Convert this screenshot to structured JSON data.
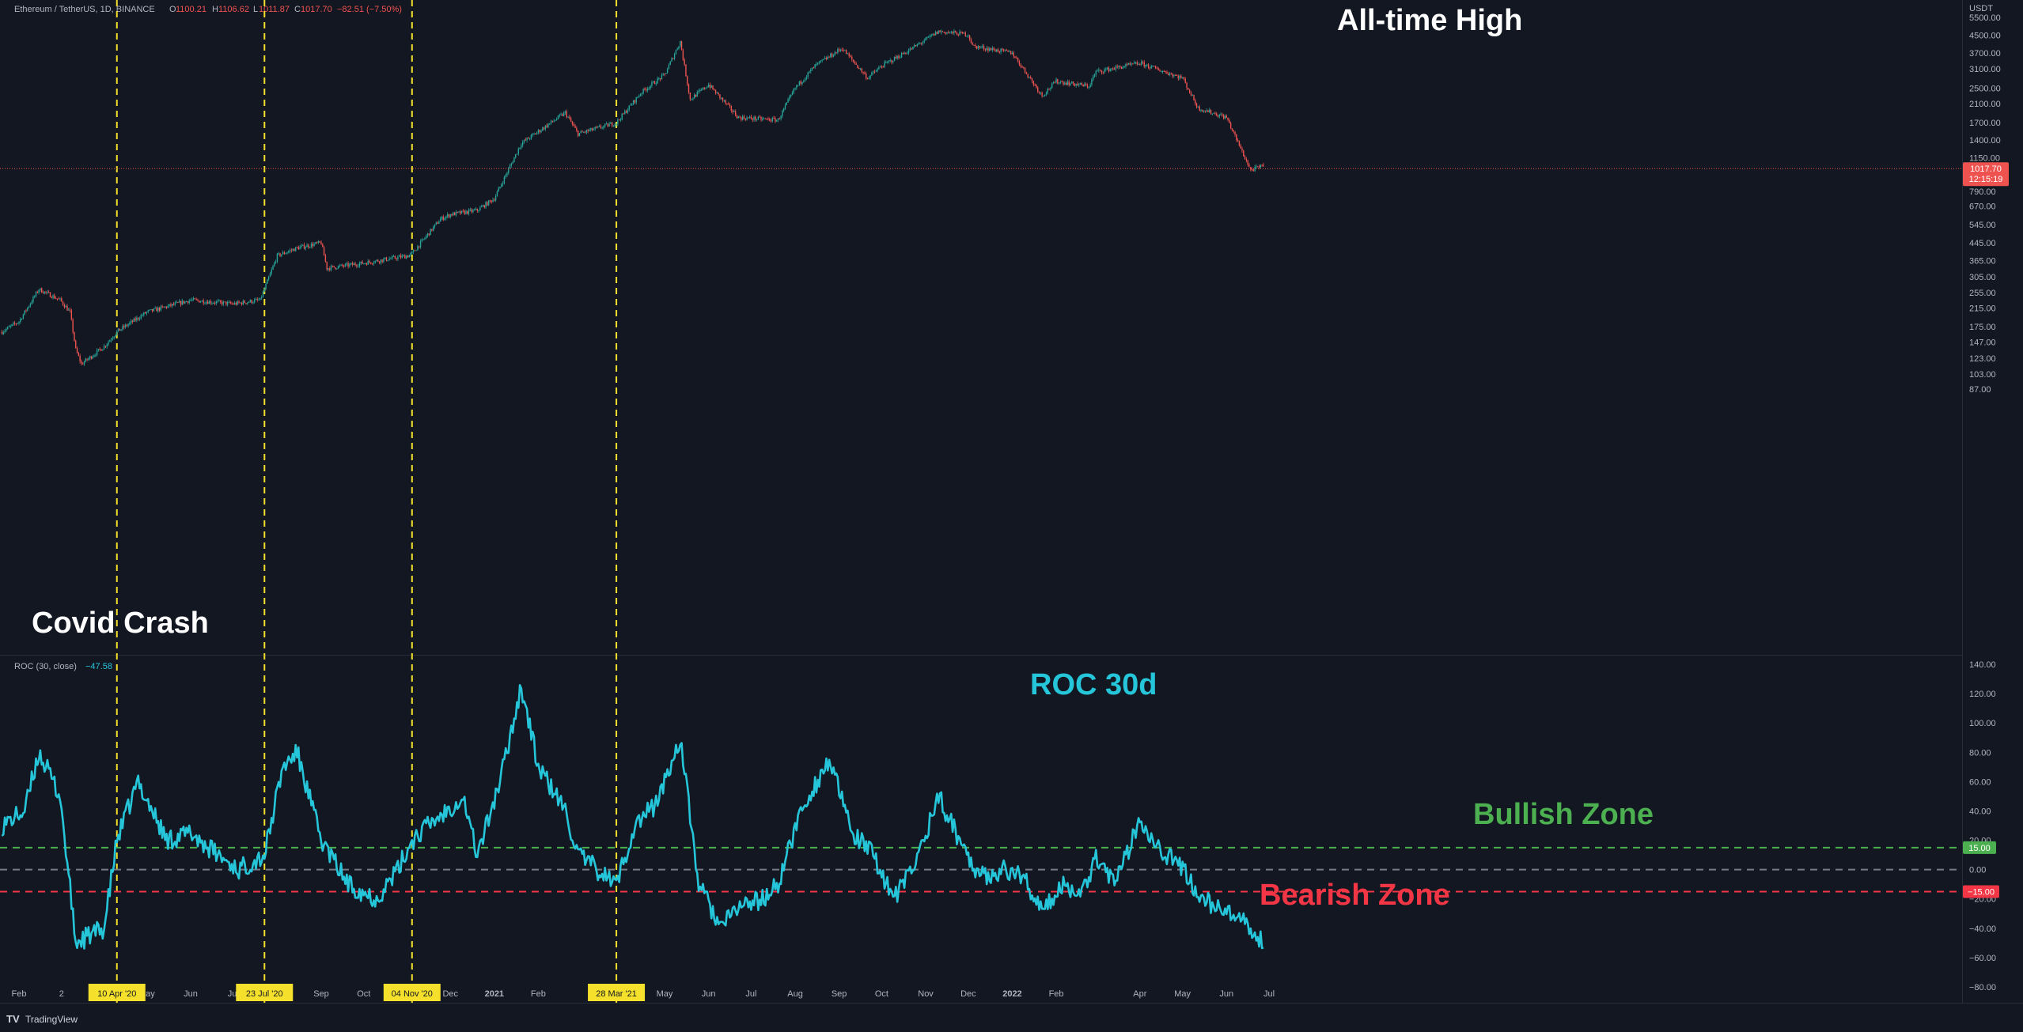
{
  "header": {
    "symbol": "Ethereum / TetherUS, 1D, BINANCE",
    "ohlc": [
      {
        "label": "O",
        "value": "1100.21"
      },
      {
        "label": "H",
        "value": "1106.62"
      },
      {
        "label": "L",
        "value": "1011.87"
      },
      {
        "label": "C",
        "value": "1017.70"
      }
    ],
    "change": "−82.51 (−7.50%)"
  },
  "currency": "USDT",
  "price_badge": {
    "value": "1017.70",
    "countdown": "12:15:19"
  },
  "annotations": {
    "all_time_high": "All-time High",
    "covid_crash": "Covid Crash",
    "roc_title": "ROC 30d",
    "bullish_zone": "Bullish Zone",
    "bearish_zone": "Bearish Zone"
  },
  "roc_legend": {
    "name": "ROC (30, close)",
    "value": "−47.58"
  },
  "roc_levels": {
    "upper": "15.00",
    "lower": "−15.00"
  },
  "footer": {
    "brand": "TradingView"
  },
  "colors": {
    "background": "#131722",
    "up": "#26a69a",
    "down": "#ef5350",
    "roc_line": "#26c6da",
    "vline": "#f5e12b",
    "bullish": "#4caf50",
    "bearish": "#f23645",
    "zero_line": "#787b86",
    "label_text": "#b2b5be"
  },
  "price_axis_ticks": [
    "5500.00",
    "4500.00",
    "3700.00",
    "3100.00",
    "2500.00",
    "2100.00",
    "1700.00",
    "1400.00",
    "1150.00",
    "790.00",
    "670.00",
    "545.00",
    "445.00",
    "365.00",
    "305.00",
    "255.00",
    "215.00",
    "175.00",
    "147.00",
    "123.00",
    "103.00",
    "87.00"
  ],
  "roc_axis_ticks": [
    "140.00",
    "120.00",
    "100.00",
    "80.00",
    "60.00",
    "40.00",
    "20.00",
    "0.00",
    "−20.00",
    "−40.00",
    "−60.00",
    "−80.00"
  ],
  "time_axis": {
    "labels": [
      {
        "text": "Feb",
        "date": "2020-02-01"
      },
      {
        "text": "2",
        "date": "2020-03-02"
      },
      {
        "text": "May",
        "date": "2020-05-01"
      },
      {
        "text": "Jun",
        "date": "2020-06-01"
      },
      {
        "text": "Jul",
        "date": "2020-07-01"
      },
      {
        "text": "Sep",
        "date": "2020-09-01"
      },
      {
        "text": "Oct",
        "date": "2020-10-01"
      },
      {
        "text": "Dec",
        "date": "2020-12-01"
      },
      {
        "text": "2021",
        "date": "2021-01-01",
        "bold": true
      },
      {
        "text": "Feb",
        "date": "2021-02-01"
      },
      {
        "text": "May",
        "date": "2021-05-01"
      },
      {
        "text": "Jun",
        "date": "2021-06-01"
      },
      {
        "text": "Jul",
        "date": "2021-07-01"
      },
      {
        "text": "Aug",
        "date": "2021-08-01"
      },
      {
        "text": "Sep",
        "date": "2021-09-01"
      },
      {
        "text": "Oct",
        "date": "2021-10-01"
      },
      {
        "text": "Nov",
        "date": "2021-11-01"
      },
      {
        "text": "Dec",
        "date": "2021-12-01"
      },
      {
        "text": "2022",
        "date": "2022-01-01",
        "bold": true
      },
      {
        "text": "Feb",
        "date": "2022-02-01"
      },
      {
        "text": "Apr",
        "date": "2022-04-01"
      },
      {
        "text": "May",
        "date": "2022-05-01"
      },
      {
        "text": "Jun",
        "date": "2022-06-01"
      },
      {
        "text": "Jul",
        "date": "2022-07-01"
      }
    ],
    "highlighted": [
      {
        "text": "10 Apr '20",
        "date": "2020-04-10"
      },
      {
        "text": "23 Jul '20",
        "date": "2020-07-23"
      },
      {
        "text": "04 Nov '20",
        "date": "2020-11-04"
      },
      {
        "text": "28 Mar '21",
        "date": "2021-03-28"
      }
    ]
  },
  "chart_data": [
    {
      "type": "line",
      "title": "",
      "ylabel": "USDT",
      "scale": "log",
      "ylim": [
        75,
        6600
      ],
      "x": [
        "2020-01-20",
        "2020-02-01",
        "2020-02-15",
        "2020-03-01",
        "2020-03-08",
        "2020-03-12",
        "2020-03-16",
        "2020-04-01",
        "2020-04-10",
        "2020-05-01",
        "2020-06-01",
        "2020-07-01",
        "2020-07-20",
        "2020-08-01",
        "2020-08-15",
        "2020-09-01",
        "2020-09-05",
        "2020-10-01",
        "2020-11-01",
        "2020-11-04",
        "2020-11-24",
        "2020-12-01",
        "2020-12-20",
        "2021-01-01",
        "2021-01-20",
        "2021-02-20",
        "2021-03-01",
        "2021-03-28",
        "2021-04-15",
        "2021-05-01",
        "2021-05-12",
        "2021-05-19",
        "2021-06-01",
        "2021-06-22",
        "2021-07-20",
        "2021-08-01",
        "2021-08-15",
        "2021-09-03",
        "2021-09-21",
        "2021-10-01",
        "2021-10-20",
        "2021-11-10",
        "2021-12-01",
        "2021-12-04",
        "2022-01-01",
        "2022-01-22",
        "2022-02-01",
        "2022-02-24",
        "2022-03-01",
        "2022-04-01",
        "2022-05-01",
        "2022-05-12",
        "2022-06-01",
        "2022-06-18",
        "2022-06-27"
      ],
      "series": [
        {
          "values": [
            165,
            185,
            265,
            235,
            205,
            135,
            115,
            140,
            165,
            205,
            235,
            225,
            235,
            385,
            420,
            445,
            335,
            355,
            385,
            395,
            580,
            610,
            640,
            730,
            1350,
            1900,
            1500,
            1700,
            2400,
            2900,
            4200,
            2200,
            2600,
            1800,
            1750,
            2500,
            3200,
            3900,
            2800,
            3200,
            3800,
            4700,
            4550,
            4000,
            3700,
            2300,
            2700,
            2550,
            3000,
            3300,
            2800,
            2000,
            1800,
            1000,
            1050
          ]
        }
      ]
    },
    {
      "type": "line",
      "title": "ROC (30, close)",
      "ylim": [
        -88,
        142
      ],
      "x": [
        "2020-01-20",
        "2020-02-05",
        "2020-02-15",
        "2020-03-01",
        "2020-03-12",
        "2020-04-01",
        "2020-04-10",
        "2020-04-25",
        "2020-05-15",
        "2020-06-01",
        "2020-06-20",
        "2020-07-05",
        "2020-07-23",
        "2020-08-05",
        "2020-08-15",
        "2020-09-01",
        "2020-09-20",
        "2020-10-10",
        "2020-10-25",
        "2020-11-04",
        "2020-11-15",
        "2020-11-28",
        "2020-12-10",
        "2020-12-20",
        "2021-01-05",
        "2021-01-20",
        "2021-02-01",
        "2021-02-20",
        "2021-03-01",
        "2021-03-28",
        "2021-04-10",
        "2021-04-25",
        "2021-05-05",
        "2021-05-12",
        "2021-05-25",
        "2021-06-10",
        "2021-06-22",
        "2021-07-10",
        "2021-07-20",
        "2021-08-05",
        "2021-08-25",
        "2021-09-10",
        "2021-09-25",
        "2021-10-10",
        "2021-10-25",
        "2021-11-10",
        "2021-11-25",
        "2021-12-10",
        "2021-12-25",
        "2022-01-10",
        "2022-01-22",
        "2022-02-05",
        "2022-02-20",
        "2022-03-01",
        "2022-03-15",
        "2022-04-01",
        "2022-04-15",
        "2022-05-01",
        "2022-05-15",
        "2022-06-01",
        "2022-06-12",
        "2022-06-18",
        "2022-06-27"
      ],
      "series": [
        {
          "name": "ROC",
          "values": [
            30,
            40,
            80,
            50,
            -50,
            -40,
            20,
            60,
            20,
            25,
            10,
            0,
            10,
            70,
            80,
            20,
            -10,
            -20,
            0,
            20,
            30,
            40,
            50,
            10,
            60,
            125,
            70,
            40,
            10,
            -10,
            30,
            45,
            70,
            90,
            -10,
            -40,
            -25,
            -20,
            -10,
            40,
            75,
            25,
            10,
            -20,
            5,
            50,
            20,
            -5,
            0,
            -5,
            -30,
            -10,
            -15,
            10,
            -10,
            35,
            15,
            0,
            -20,
            -30,
            -35,
            -45,
            -48
          ]
        }
      ]
    }
  ]
}
